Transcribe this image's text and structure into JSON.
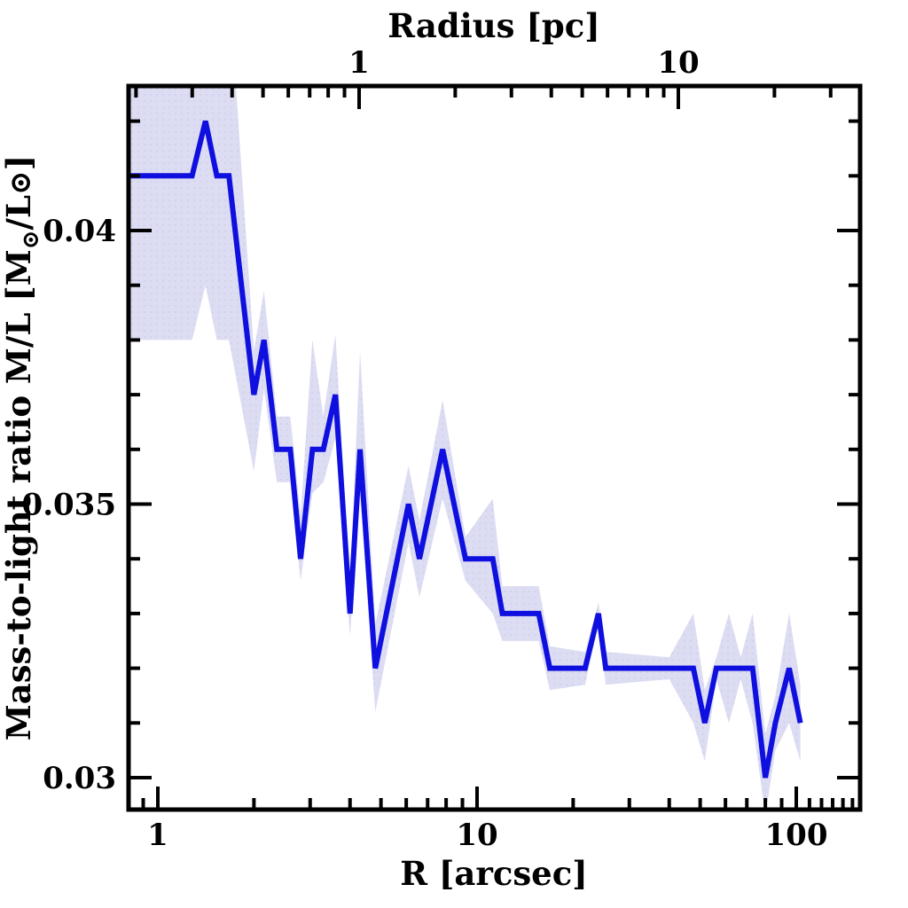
{
  "figure": {
    "top_axis_title": "Radius [pc]",
    "bottom_axis_title": "R [arcsec]",
    "y_axis_title_parts": {
      "prefix": "Mass-to-light ratio M/L [M",
      "sun_subscript": "⊙",
      "middle": "/L",
      "sun_inline": "⊙",
      "suffix": "]"
    }
  },
  "chart_data": {
    "type": "line",
    "title": "Radius [pc]",
    "xlabel": "R [arcsec]",
    "ylabel": "Mass-to-light ratio M/L [M⊙/L⊙]",
    "x_scale": "log",
    "x_range": [
      0.8,
      158
    ],
    "y_range": [
      0.0294,
      0.0427
    ],
    "x": [
      0.8,
      1.28,
      1.41,
      1.53,
      1.67,
      2.0,
      2.15,
      2.36,
      2.6,
      2.8,
      3.05,
      3.3,
      3.6,
      4.0,
      4.3,
      4.8,
      6.1,
      6.6,
      7.8,
      9.2,
      11.2,
      12.0,
      15.6,
      16.9,
      21.8,
      24.0,
      25.3,
      40.0,
      47.6,
      51.7,
      56.2,
      61.5,
      67.0,
      73.0,
      80.0,
      86.0,
      95.0,
      103.0
    ],
    "series": [
      {
        "name": "mass-to-light-ratio",
        "values": [
          0.041,
          0.041,
          0.042,
          0.041,
          0.041,
          0.037,
          0.038,
          0.036,
          0.036,
          0.034,
          0.036,
          0.036,
          0.037,
          0.033,
          0.036,
          0.032,
          0.035,
          0.034,
          0.036,
          0.034,
          0.034,
          0.033,
          0.033,
          0.032,
          0.032,
          0.033,
          0.032,
          0.032,
          0.032,
          0.031,
          0.032,
          0.032,
          0.032,
          0.032,
          0.03,
          0.031,
          0.032,
          0.031
        ]
      }
    ],
    "band_upper": [
      0.0445,
      0.0445,
      0.0455,
      0.0445,
      0.0445,
      0.0378,
      0.0389,
      0.0366,
      0.0366,
      0.0348,
      0.038,
      0.0366,
      0.0381,
      0.0336,
      0.0378,
      0.0328,
      0.0357,
      0.0347,
      0.0369,
      0.0344,
      0.0351,
      0.0335,
      0.0335,
      0.0324,
      0.0323,
      0.0332,
      0.0323,
      0.0322,
      0.033,
      0.0316,
      0.0322,
      0.033,
      0.0322,
      0.033,
      0.0308,
      0.0315,
      0.033,
      0.0317
    ],
    "band_lower": [
      0.038,
      0.038,
      0.039,
      0.038,
      0.038,
      0.0356,
      0.0371,
      0.0354,
      0.0354,
      0.0336,
      0.0352,
      0.0354,
      0.0362,
      0.0326,
      0.0352,
      0.0312,
      0.0343,
      0.0333,
      0.0351,
      0.0336,
      0.033,
      0.0325,
      0.0325,
      0.0316,
      0.0317,
      0.0328,
      0.0317,
      0.0318,
      0.031,
      0.0303,
      0.0318,
      0.031,
      0.0318,
      0.031,
      0.0293,
      0.0305,
      0.031,
      0.0303
    ],
    "x_axis_bottom": {
      "label": "R [arcsec]",
      "major_ticks": [
        1,
        10,
        100
      ],
      "major_tick_labels": [
        "1",
        "10",
        "100"
      ],
      "minor_ticks": [
        0.9,
        2,
        3,
        4,
        5,
        6,
        7,
        8,
        9,
        20,
        30,
        40,
        50,
        60,
        70,
        80,
        90,
        110,
        120,
        130,
        140,
        150
      ]
    },
    "x_axis_top": {
      "label": "Radius [pc]",
      "units_note": "top axis shows same radii in parsec",
      "major_ticks": [
        1,
        10
      ],
      "major_tick_labels": [
        "1",
        "10"
      ],
      "minor_ticks": [
        0.2,
        0.3,
        0.4,
        0.5,
        0.6,
        0.7,
        0.8,
        0.9,
        2,
        3,
        4,
        5,
        6,
        7,
        8,
        9,
        20,
        30
      ],
      "range_pc": [
        0.19,
        37
      ]
    },
    "y_axis": {
      "label": "Mass-to-light ratio M/L [M⊙/L⊙]",
      "major_ticks": [
        0.03,
        0.035,
        0.04
      ],
      "major_tick_labels": [
        "0.03",
        "0.035",
        "0.04"
      ],
      "minor_step": 0.001,
      "minor_ticks": [
        0.03,
        0.031,
        0.032,
        0.033,
        0.034,
        0.035,
        0.036,
        0.037,
        0.038,
        0.039,
        0.04,
        0.041,
        0.042
      ]
    },
    "legend": null,
    "grid": false,
    "colors": {
      "line": "#0f0fdf",
      "band": "#dcdcf3",
      "band_dots": "#cfcfea",
      "axis": "#000000",
      "background": "#ffffff"
    }
  }
}
